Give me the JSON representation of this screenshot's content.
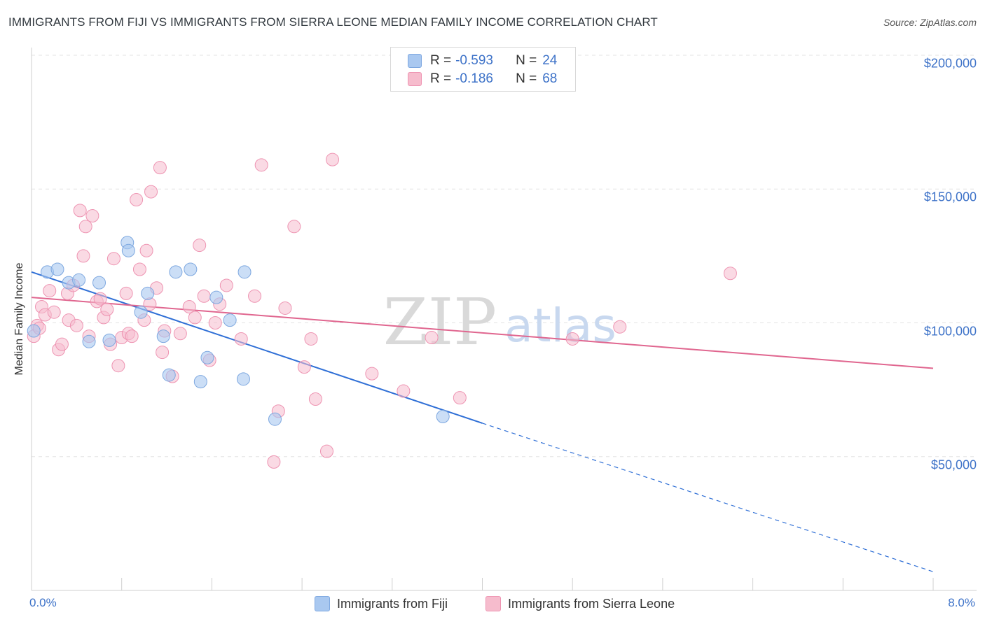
{
  "chart_data": {
    "type": "scatter",
    "title": "IMMIGRANTS FROM FIJI VS IMMIGRANTS FROM SIERRA LEONE MEDIAN FAMILY INCOME CORRELATION CHART",
    "source": "Source: ZipAtlas.com",
    "ylabel": "Median Family Income",
    "xlim": [
      0,
      8
    ],
    "ylim": [
      0,
      210000
    ],
    "x_tick_labels": [
      "0.0%",
      "8.0%"
    ],
    "y_ticks": [
      {
        "value": 50000,
        "label": "$50,000"
      },
      {
        "value": 100000,
        "label": "$100,000"
      },
      {
        "value": 150000,
        "label": "$150,000"
      },
      {
        "value": 200000,
        "label": "$200,000"
      }
    ],
    "watermark": {
      "zip": "ZIP",
      "atlas": "atlas"
    },
    "colors": {
      "fiji_fill": "#a9c8f0",
      "fiji_stroke": "#7ea8e0",
      "fiji_line": "#2f6fd6",
      "sl_fill": "#f6bccd",
      "sl_stroke": "#ee94b2",
      "sl_line": "#e0668f",
      "grid": "#e3e3e3",
      "axis_text": "#3d72c8"
    },
    "series": [
      {
        "name": "Immigrants from Fiji",
        "R": "-0.593",
        "N": "24",
        "trend": {
          "x0": 0.0,
          "y0": 119000,
          "x1": 4.0,
          "y1": 62500,
          "x_dash_end": 8.0,
          "y_dash_end": 7000
        },
        "points": [
          [
            0.02,
            97000
          ],
          [
            0.14,
            119000
          ],
          [
            0.23,
            120000
          ],
          [
            0.33,
            115000
          ],
          [
            0.42,
            116000
          ],
          [
            0.51,
            93000
          ],
          [
            0.6,
            115000
          ],
          [
            0.69,
            93500
          ],
          [
            0.85,
            130000
          ],
          [
            0.86,
            127000
          ],
          [
            0.97,
            104000
          ],
          [
            1.03,
            111000
          ],
          [
            1.17,
            95000
          ],
          [
            1.22,
            80500
          ],
          [
            1.28,
            119000
          ],
          [
            1.41,
            120000
          ],
          [
            1.5,
            78000
          ],
          [
            1.56,
            87000
          ],
          [
            1.64,
            109500
          ],
          [
            1.76,
            101000
          ],
          [
            1.88,
            79000
          ],
          [
            1.89,
            119000
          ],
          [
            2.16,
            64000
          ],
          [
            3.65,
            65000
          ]
        ]
      },
      {
        "name": "Immigrants from Sierra Leone",
        "R": "-0.186",
        "N": "68",
        "trend": {
          "x0": 0.0,
          "y0": 109500,
          "x1": 8.0,
          "y1": 83000
        },
        "points": [
          [
            0.02,
            95000
          ],
          [
            0.05,
            99000
          ],
          [
            0.09,
            106000
          ],
          [
            0.12,
            103000
          ],
          [
            0.16,
            112000
          ],
          [
            0.2,
            104000
          ],
          [
            0.24,
            90000
          ],
          [
            0.27,
            92000
          ],
          [
            0.32,
            111000
          ],
          [
            0.33,
            101000
          ],
          [
            0.37,
            114000
          ],
          [
            0.4,
            99000
          ],
          [
            0.43,
            142000
          ],
          [
            0.46,
            125000
          ],
          [
            0.48,
            136000
          ],
          [
            0.51,
            95000
          ],
          [
            0.54,
            140000
          ],
          [
            0.58,
            108000
          ],
          [
            0.61,
            109000
          ],
          [
            0.64,
            102000
          ],
          [
            0.67,
            105000
          ],
          [
            0.7,
            92000
          ],
          [
            0.73,
            124000
          ],
          [
            0.77,
            84000
          ],
          [
            0.8,
            94500
          ],
          [
            0.84,
            111000
          ],
          [
            0.86,
            96000
          ],
          [
            0.89,
            95000
          ],
          [
            0.93,
            146000
          ],
          [
            0.96,
            120000
          ],
          [
            1.0,
            101000
          ],
          [
            1.02,
            127000
          ],
          [
            1.05,
            107000
          ],
          [
            1.06,
            149000
          ],
          [
            1.11,
            113000
          ],
          [
            1.14,
            158000
          ],
          [
            1.16,
            89000
          ],
          [
            1.18,
            97000
          ],
          [
            1.25,
            80000
          ],
          [
            1.32,
            96000
          ],
          [
            1.4,
            106000
          ],
          [
            1.45,
            102000
          ],
          [
            1.49,
            129000
          ],
          [
            1.53,
            110000
          ],
          [
            1.58,
            86000
          ],
          [
            1.63,
            100000
          ],
          [
            1.67,
            107000
          ],
          [
            1.73,
            114000
          ],
          [
            1.86,
            94000
          ],
          [
            1.98,
            110000
          ],
          [
            2.04,
            159000
          ],
          [
            2.15,
            48000
          ],
          [
            2.19,
            67000
          ],
          [
            2.25,
            105500
          ],
          [
            2.33,
            136000
          ],
          [
            2.42,
            83500
          ],
          [
            2.48,
            94000
          ],
          [
            2.52,
            71500
          ],
          [
            2.62,
            52000
          ],
          [
            2.67,
            161000
          ],
          [
            3.02,
            81000
          ],
          [
            3.3,
            74500
          ],
          [
            3.55,
            94500
          ],
          [
            3.8,
            72000
          ],
          [
            4.8,
            94000
          ],
          [
            5.22,
            98500
          ],
          [
            6.2,
            118500
          ],
          [
            0.07,
            98000
          ]
        ]
      }
    ]
  }
}
